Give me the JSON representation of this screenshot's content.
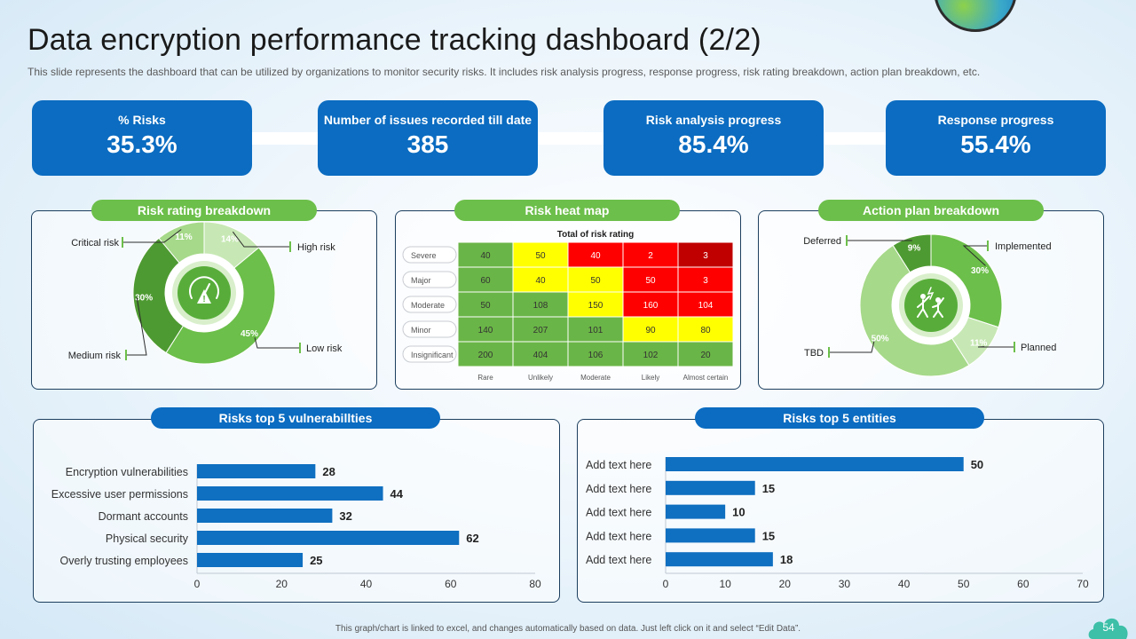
{
  "title": "Data encryption performance tracking dashboard (2/2)",
  "subtitle": "This slide represents the dashboard that can be utilized by organizations to monitor security risks. It includes risk analysis progress, response progress, risk rating breakdown, action plan breakdown, etc.",
  "kpis": [
    {
      "label": "% Risks",
      "value": "35.3%"
    },
    {
      "label": "Number of issues recorded till date",
      "value": "385"
    },
    {
      "label": "Risk analysis progress",
      "value": "85.4%"
    },
    {
      "label": "Response progress",
      "value": "55.4%"
    }
  ],
  "colors": {
    "primary_blue": "#0b6cc1",
    "green": "#6cbf4a",
    "bar_blue": "#0f6fc0",
    "heat_green": "#6ab547",
    "heat_yellow": "#ffff00",
    "heat_red": "#ff0000",
    "heat_darkred": "#c00000"
  },
  "risk_rating": {
    "title": "Risk rating breakdown"
  },
  "heat_map_panel": {
    "title": "Risk heat map"
  },
  "action_plan": {
    "title": "Action plan breakdown"
  },
  "vulnerabilities": {
    "title": "Risks top 5 vulnerabillties"
  },
  "entities": {
    "title": "Risks top 5 entities"
  },
  "footer": "This graph/chart is linked to excel, and changes automatically based on data. Just left click on it and select “Edit Data”.",
  "page_number": "54",
  "chart_data": [
    {
      "id": "risk-rating",
      "type": "pie",
      "title": "Risk rating breakdown",
      "icon": "speedometer-alert-icon",
      "slices": [
        {
          "label": "High risk",
          "value": 14,
          "value_label": "14%",
          "color": "#c7e8b4"
        },
        {
          "label": "Low risk",
          "value": 45,
          "value_label": "45%",
          "color": "#6cbf4a"
        },
        {
          "label": "Medium risk",
          "value": 30,
          "value_label": "30%",
          "color": "#4e9a32"
        },
        {
          "label": "Critical risk",
          "value": 11,
          "value_label": "11%",
          "color": "#a6d98a"
        }
      ]
    },
    {
      "id": "risk-heat-map",
      "type": "heatmap",
      "title": "Total of risk rating",
      "rows": [
        "Severe",
        "Major",
        "Moderate",
        "Minor",
        "Insignificant"
      ],
      "columns": [
        "Rare",
        "Unlikely",
        "Moderate",
        "Likely",
        "Almost certain"
      ],
      "values": [
        [
          40,
          50,
          40,
          2,
          3
        ],
        [
          60,
          40,
          50,
          50,
          3
        ],
        [
          50,
          108,
          150,
          160,
          104
        ],
        [
          140,
          207,
          101,
          90,
          80
        ],
        [
          200,
          404,
          106,
          102,
          20
        ]
      ],
      "cell_colors": [
        [
          "green",
          "yellow",
          "red",
          "red",
          "darkred"
        ],
        [
          "green",
          "yellow",
          "yellow",
          "red",
          "red"
        ],
        [
          "green",
          "green",
          "yellow",
          "red",
          "red"
        ],
        [
          "green",
          "green",
          "green",
          "yellow",
          "yellow"
        ],
        [
          "green",
          "green",
          "green",
          "green",
          "green"
        ]
      ]
    },
    {
      "id": "action-plan",
      "type": "pie",
      "title": "Action plan breakdown",
      "icon": "people-celebrating-icon",
      "slices": [
        {
          "label": "Implemented",
          "value": 30,
          "value_label": "30%",
          "color": "#6cbf4a"
        },
        {
          "label": "Planned",
          "value": 11,
          "value_label": "11%",
          "color": "#c7e8b4"
        },
        {
          "label": "TBD",
          "value": 50,
          "value_label": "50%",
          "color": "#a6d98a"
        },
        {
          "label": "Deferred",
          "value": 9,
          "value_label": "9%",
          "color": "#4e9a32"
        }
      ]
    },
    {
      "id": "vulnerabilities",
      "type": "bar",
      "orientation": "horizontal",
      "title": "Risks top 5 vulnerabillties",
      "categories": [
        "Encryption vulnerabilities",
        "Excessive user permissions",
        "Dormant accounts",
        "Physical security",
        "Overly trusting employees"
      ],
      "values": [
        28,
        44,
        32,
        62,
        25
      ],
      "xlim": [
        0,
        80
      ],
      "ticks": [
        0,
        20,
        40,
        60,
        80
      ]
    },
    {
      "id": "entities",
      "type": "bar",
      "orientation": "horizontal",
      "title": "Risks top 5 entities",
      "categories": [
        "Add text here",
        "Add text here",
        "Add text here",
        "Add text here",
        "Add text here"
      ],
      "values": [
        50,
        15,
        10,
        15,
        18
      ],
      "xlim": [
        0,
        70
      ],
      "ticks": [
        0,
        10,
        20,
        30,
        40,
        50,
        60,
        70
      ]
    }
  ]
}
